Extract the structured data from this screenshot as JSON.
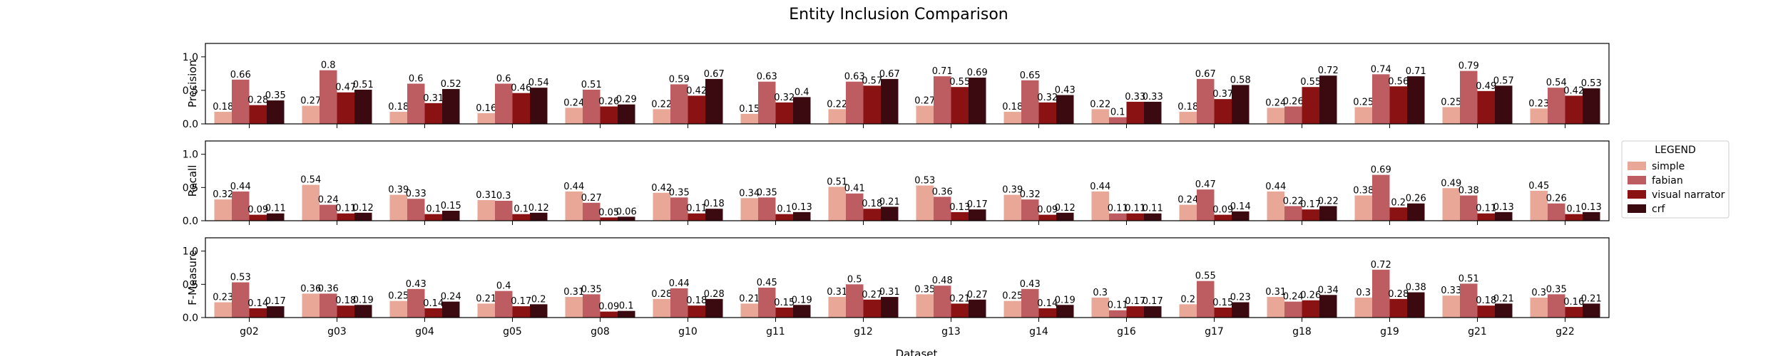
{
  "chart_data": {
    "type": "bar",
    "title": "Entity Inclusion Comparison",
    "xlabel": "Dataset",
    "categories": [
      "g02",
      "g03",
      "g04",
      "g05",
      "g08",
      "g10",
      "g11",
      "g12",
      "g13",
      "g14",
      "g16",
      "g17",
      "g18",
      "g19",
      "g21",
      "g22"
    ],
    "ylim": [
      0,
      1.2
    ],
    "yticks": [
      0.0,
      0.5,
      1.0
    ],
    "grid": false,
    "legend": {
      "title": "LEGEND",
      "placement": "right",
      "entries": [
        "simple",
        "fabian",
        "visual narrator",
        "crf"
      ]
    },
    "colors": {
      "simple": "#e8a797",
      "fabian": "#bd5d62",
      "visual narrator": "#8a1212",
      "crf": "#3b0a10"
    },
    "panels": [
      {
        "ylabel": "Precision",
        "series": [
          {
            "name": "simple",
            "values": [
              0.18,
              0.27,
              0.18,
              0.16,
              0.24,
              0.22,
              0.15,
              0.22,
              0.27,
              0.18,
              0.22,
              0.18,
              0.24,
              0.25,
              0.25,
              0.23
            ]
          },
          {
            "name": "fabian",
            "values": [
              0.66,
              0.8,
              0.6,
              0.6,
              0.51,
              0.59,
              0.63,
              0.63,
              0.71,
              0.65,
              0.1,
              0.67,
              0.26,
              0.74,
              0.79,
              0.54
            ]
          },
          {
            "name": "visual narrator",
            "values": [
              0.28,
              0.47,
              0.31,
              0.46,
              0.26,
              0.42,
              0.32,
              0.57,
              0.55,
              0.32,
              0.33,
              0.37,
              0.55,
              0.56,
              0.49,
              0.42
            ]
          },
          {
            "name": "crf",
            "values": [
              0.35,
              0.51,
              0.52,
              0.54,
              0.29,
              0.67,
              0.4,
              0.67,
              0.69,
              0.43,
              0.33,
              0.58,
              0.72,
              0.71,
              0.57,
              0.53
            ]
          }
        ]
      },
      {
        "ylabel": "Recall",
        "series": [
          {
            "name": "simple",
            "values": [
              0.32,
              0.54,
              0.39,
              0.31,
              0.44,
              0.42,
              0.34,
              0.51,
              0.53,
              0.39,
              0.44,
              0.24,
              0.44,
              0.38,
              0.49,
              0.45
            ]
          },
          {
            "name": "fabian",
            "values": [
              0.44,
              0.24,
              0.33,
              0.3,
              0.27,
              0.35,
              0.35,
              0.41,
              0.36,
              0.32,
              0.11,
              0.47,
              0.22,
              0.69,
              0.38,
              0.26
            ]
          },
          {
            "name": "visual narrator",
            "values": [
              0.09,
              0.11,
              0.1,
              0.1,
              0.05,
              0.11,
              0.1,
              0.18,
              0.13,
              0.09,
              0.11,
              0.09,
              0.17,
              0.2,
              0.11,
              0.1
            ]
          },
          {
            "name": "crf",
            "values": [
              0.11,
              0.12,
              0.15,
              0.12,
              0.06,
              0.18,
              0.13,
              0.21,
              0.17,
              0.12,
              0.11,
              0.14,
              0.22,
              0.26,
              0.13,
              0.13
            ]
          }
        ]
      },
      {
        "ylabel": "F-Measure",
        "series": [
          {
            "name": "simple",
            "values": [
              0.23,
              0.36,
              0.25,
              0.21,
              0.31,
              0.28,
              0.21,
              0.31,
              0.35,
              0.25,
              0.3,
              0.2,
              0.31,
              0.3,
              0.33,
              0.3
            ]
          },
          {
            "name": "fabian",
            "values": [
              0.53,
              0.36,
              0.43,
              0.4,
              0.35,
              0.44,
              0.45,
              0.5,
              0.48,
              0.43,
              0.11,
              0.55,
              0.24,
              0.72,
              0.51,
              0.35
            ]
          },
          {
            "name": "visual narrator",
            "values": [
              0.14,
              0.18,
              0.14,
              0.17,
              0.09,
              0.18,
              0.15,
              0.27,
              0.21,
              0.14,
              0.17,
              0.15,
              0.26,
              0.28,
              0.18,
              0.16
            ]
          },
          {
            "name": "crf",
            "values": [
              0.17,
              0.19,
              0.24,
              0.2,
              0.1,
              0.28,
              0.19,
              0.31,
              0.27,
              0.19,
              0.17,
              0.23,
              0.34,
              0.38,
              0.21,
              0.21
            ]
          }
        ]
      }
    ]
  }
}
